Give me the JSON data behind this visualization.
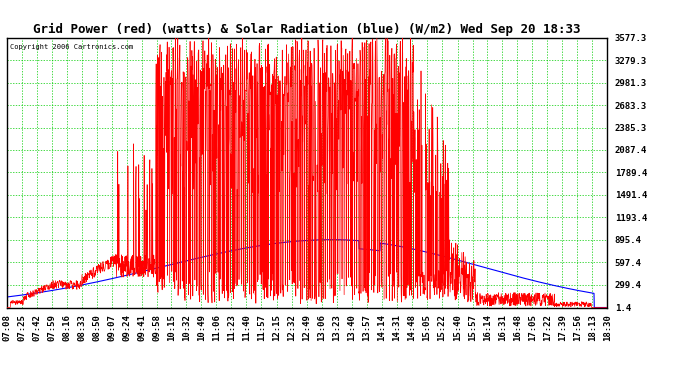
{
  "title": "Grid Power (red) (watts) & Solar Radiation (blue) (W/m2) Wed Sep 20 18:33",
  "copyright": "Copyright 2006 Cartronics.com",
  "yticks": [
    1.4,
    299.4,
    597.4,
    895.4,
    1193.4,
    1491.4,
    1789.4,
    2087.4,
    2385.3,
    2683.3,
    2981.3,
    3279.3,
    3577.3
  ],
  "ymin": 1.4,
  "ymax": 3577.3,
  "xtick_labels": [
    "07:08",
    "07:25",
    "07:42",
    "07:59",
    "08:16",
    "08:33",
    "08:50",
    "09:07",
    "09:24",
    "09:41",
    "09:58",
    "10:15",
    "10:32",
    "10:49",
    "11:06",
    "11:23",
    "11:40",
    "11:57",
    "12:15",
    "12:32",
    "12:49",
    "13:06",
    "13:23",
    "13:40",
    "13:57",
    "14:14",
    "14:31",
    "14:48",
    "15:05",
    "15:22",
    "15:40",
    "15:57",
    "16:14",
    "16:31",
    "16:48",
    "17:05",
    "17:22",
    "17:39",
    "17:56",
    "18:13",
    "18:30"
  ],
  "bg_color": "#ffffff",
  "border_color": "#000000",
  "grid_color": "#00cc00",
  "red_color": "#ff0000",
  "blue_color": "#0000ff",
  "title_fontsize": 9,
  "tick_fontsize": 6.5,
  "figsize": [
    6.9,
    3.75
  ],
  "dpi": 100
}
